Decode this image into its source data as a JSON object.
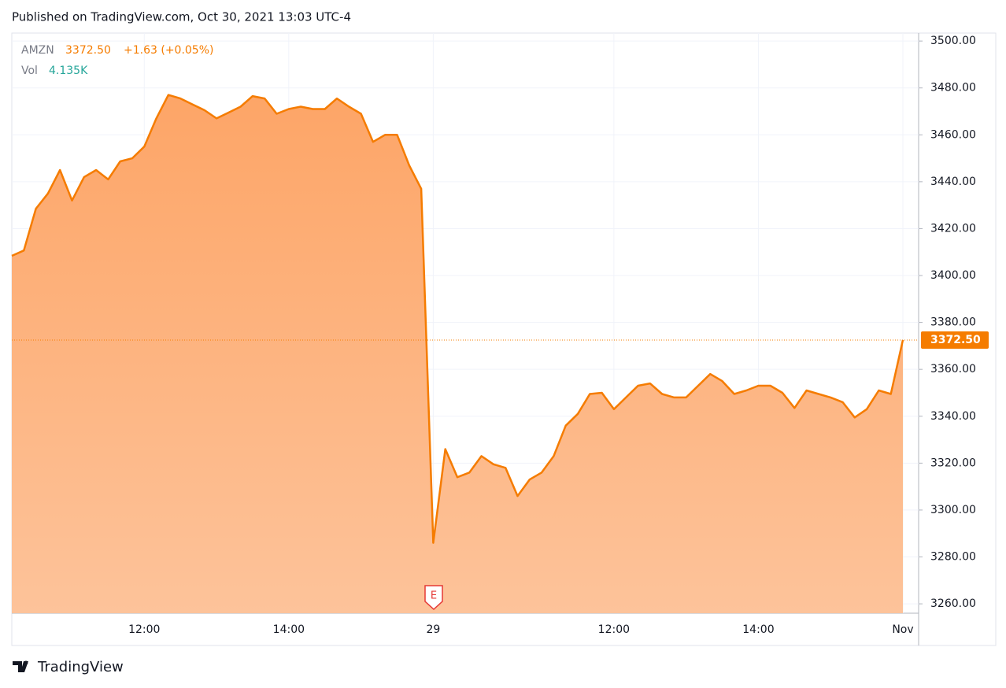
{
  "published": "Published on TradingView.com, Oct 30, 2021 13:03 UTC-4",
  "brand": "TradingView",
  "legend": {
    "symbol": "AMZN",
    "price": "3372.50",
    "change": "+1.63 (+0.05%)",
    "vol_label": "Vol",
    "vol_value": "4.135K"
  },
  "earnings_marker": "E",
  "chart_data": {
    "type": "area",
    "categories": [
      null,
      null,
      null,
      null,
      null,
      null,
      null,
      null,
      null,
      null,
      null,
      "12:00",
      null,
      null,
      null,
      null,
      null,
      null,
      null,
      null,
      null,
      null,
      null,
      "14:00",
      null,
      null,
      null,
      null,
      null,
      null,
      null,
      null,
      null,
      null,
      null,
      "29",
      null,
      null,
      null,
      null,
      null,
      null,
      null,
      null,
      null,
      null,
      null,
      null,
      null,
      null,
      "12:00",
      null,
      null,
      null,
      null,
      null,
      null,
      null,
      null,
      null,
      null,
      null,
      "14:00",
      null,
      null,
      null,
      null,
      null,
      null,
      null,
      null,
      null,
      null,
      null,
      "Nov"
    ],
    "series": [
      {
        "name": "AMZN",
        "color": "#f57c00",
        "values": [
          3408.4,
          3410.7,
          3428.5,
          3435,
          3445,
          3432,
          3442,
          3445,
          3441,
          3448.7,
          3450,
          3455,
          3467,
          3477,
          3475.5,
          3473,
          3470.5,
          3467,
          3469.5,
          3472,
          3476.5,
          3475.5,
          3469,
          3471,
          3472,
          3471,
          3471,
          3475.5,
          3472,
          3469,
          3457,
          3460,
          3460,
          3447,
          3437,
          3286,
          3326,
          3314,
          3316,
          3323,
          3319.5,
          3318,
          3306,
          3313,
          3316,
          3323,
          3336,
          3341,
          3349.5,
          3350,
          3343,
          3348,
          3353,
          3354,
          3349.5,
          3348,
          3348,
          3353,
          3358,
          3355,
          3349.5,
          3351,
          3353,
          3353,
          3350,
          3343.5,
          3351,
          3349.5,
          3348,
          3346,
          3339.5,
          3343,
          3351,
          3349.5,
          3372.5
        ],
        "value_labels": [
          null,
          null,
          null,
          null,
          null,
          null,
          null,
          null,
          null,
          null,
          null,
          null,
          null,
          null,
          null,
          null,
          null,
          null,
          null,
          null,
          null,
          null,
          null,
          null,
          null,
          null,
          null,
          null,
          null,
          null,
          null,
          null,
          null,
          null,
          null,
          null,
          null,
          null,
          null,
          null,
          null,
          null,
          null,
          null,
          null,
          null,
          null,
          null,
          null,
          null,
          null,
          null,
          null,
          null,
          null,
          null,
          null,
          null,
          null,
          null,
          null,
          null,
          null,
          null,
          null,
          null,
          null,
          null,
          null,
          null,
          null,
          null,
          null,
          null,
          "3372.50"
        ]
      }
    ],
    "ylim": [
      3256,
      3503.4
    ],
    "yticks": [
      {
        "value": 3260,
        "label": "3260.00"
      },
      {
        "value": 3280,
        "label": "3280.00"
      },
      {
        "value": 3300,
        "label": "3300.00"
      },
      {
        "value": 3320,
        "label": "3320.00"
      },
      {
        "value": 3340,
        "label": "3340.00"
      },
      {
        "value": 3360,
        "label": "3360.00"
      },
      {
        "value": 3380,
        "label": "3380.00"
      },
      {
        "value": 3400,
        "label": "3400.00"
      },
      {
        "value": 3420,
        "label": "3420.00"
      },
      {
        "value": 3440,
        "label": "3440.00"
      },
      {
        "value": 3460,
        "label": "3460.00"
      },
      {
        "value": 3480,
        "label": "3480.00"
      },
      {
        "value": 3500,
        "label": "3500.00"
      }
    ],
    "grid": true
  }
}
